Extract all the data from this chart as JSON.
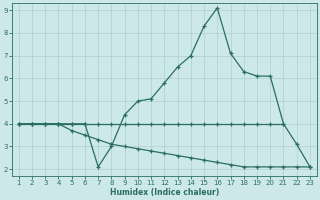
{
  "xlabel": "Humidex (Indice chaleur)",
  "xlim": [
    0.5,
    23.5
  ],
  "ylim": [
    1.7,
    9.3
  ],
  "yticks": [
    2,
    3,
    4,
    5,
    6,
    7,
    8,
    9
  ],
  "xticks": [
    1,
    2,
    3,
    4,
    5,
    6,
    7,
    8,
    9,
    10,
    11,
    12,
    13,
    14,
    15,
    16,
    17,
    18,
    19,
    20,
    21,
    22,
    23
  ],
  "color": "#2a6e63",
  "background": "#cde8e8",
  "grid_color": "#aed0d0",
  "line1_x": [
    1,
    2,
    3,
    4,
    5,
    6,
    7,
    8,
    9,
    10,
    11,
    12,
    13,
    14,
    15,
    16,
    17,
    18,
    19,
    20,
    21
  ],
  "line1_y": [
    4.0,
    4.0,
    4.0,
    4.0,
    4.0,
    4.0,
    4.0,
    4.0,
    4.0,
    4.0,
    4.0,
    4.0,
    4.0,
    4.0,
    4.0,
    4.0,
    4.0,
    4.0,
    4.0,
    4.0,
    4.0
  ],
  "line2_x": [
    1,
    2,
    3,
    4,
    5,
    6,
    7,
    8,
    9,
    10,
    11,
    12,
    13,
    14,
    15,
    16,
    17,
    18,
    19,
    20,
    21,
    22,
    23
  ],
  "line2_y": [
    4.0,
    4.0,
    4.0,
    4.0,
    4.0,
    4.0,
    2.1,
    3.0,
    4.4,
    5.0,
    5.1,
    5.8,
    6.5,
    7.0,
    8.3,
    9.1,
    7.1,
    6.3,
    6.1,
    6.1,
    4.0,
    3.1,
    2.1
  ],
  "line3_x": [
    1,
    2,
    3,
    4,
    5,
    6,
    7,
    8,
    9,
    10,
    11,
    12,
    13,
    14,
    15,
    16,
    17,
    18,
    19,
    20,
    21,
    22,
    23
  ],
  "line3_y": [
    4.0,
    4.0,
    4.0,
    4.0,
    3.7,
    3.5,
    3.3,
    3.1,
    3.0,
    2.9,
    2.8,
    2.7,
    2.6,
    2.5,
    2.4,
    2.3,
    2.2,
    2.1,
    2.1,
    2.1,
    2.1,
    2.1,
    2.1
  ]
}
